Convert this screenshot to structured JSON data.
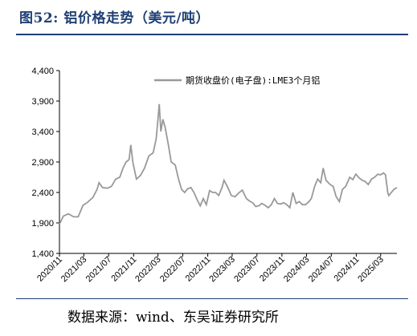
{
  "figure": {
    "title": "图52:  铝价格走势（美元/吨）",
    "source": "数据来源：wind、东吴证券研究所"
  },
  "chart_data": {
    "type": "line",
    "title": "",
    "xlabel": "",
    "ylabel": "",
    "ylim": [
      1400,
      4400
    ],
    "y_ticks": [
      1400,
      1900,
      2400,
      2900,
      3400,
      3900,
      4400
    ],
    "y_tick_labels": [
      "1,400",
      "1,900",
      "2,400",
      "2,900",
      "3,400",
      "3,900",
      "4,400"
    ],
    "x_tick_labels": [
      "2020/11",
      "2021/03",
      "2021/07",
      "2021/11",
      "2022/03",
      "2022/07",
      "2022/11",
      "2023/03",
      "2023/07",
      "2023/11",
      "2024/03",
      "2024/07",
      "2024/11",
      "2025/03"
    ],
    "legend_position": "top-right",
    "grid": false,
    "colors": {
      "line": "#999999",
      "axis": "#000000"
    },
    "series": [
      {
        "name": "期货收盘价(电子盘):LME3个月铝",
        "points": [
          [
            "2020-11-01",
            1880
          ],
          [
            "2020-11-20",
            2010
          ],
          [
            "2020-12-15",
            2050
          ],
          [
            "2021-01-10",
            2000
          ],
          [
            "2021-02-01",
            2000
          ],
          [
            "2021-02-25",
            2190
          ],
          [
            "2021-03-20",
            2240
          ],
          [
            "2021-04-15",
            2320
          ],
          [
            "2021-05-05",
            2450
          ],
          [
            "2021-05-15",
            2560
          ],
          [
            "2021-06-01",
            2480
          ],
          [
            "2021-06-25",
            2470
          ],
          [
            "2021-07-15",
            2500
          ],
          [
            "2021-08-05",
            2620
          ],
          [
            "2021-08-25",
            2650
          ],
          [
            "2021-09-10",
            2800
          ],
          [
            "2021-09-25",
            2900
          ],
          [
            "2021-10-10",
            2940
          ],
          [
            "2021-10-18",
            3180
          ],
          [
            "2021-10-28",
            2900
          ],
          [
            "2021-11-15",
            2620
          ],
          [
            "2021-12-05",
            2680
          ],
          [
            "2021-12-25",
            2800
          ],
          [
            "2022-01-15",
            3000
          ],
          [
            "2022-02-05",
            3050
          ],
          [
            "2022-02-20",
            3280
          ],
          [
            "2022-03-01",
            3600
          ],
          [
            "2022-03-07",
            3850
          ],
          [
            "2022-03-15",
            3400
          ],
          [
            "2022-03-25",
            3600
          ],
          [
            "2022-04-05",
            3470
          ],
          [
            "2022-04-20",
            3200
          ],
          [
            "2022-05-05",
            2900
          ],
          [
            "2022-05-25",
            2850
          ],
          [
            "2022-06-10",
            2620
          ],
          [
            "2022-06-25",
            2450
          ],
          [
            "2022-07-10",
            2400
          ],
          [
            "2022-07-25",
            2460
          ],
          [
            "2022-08-10",
            2480
          ],
          [
            "2022-08-25",
            2400
          ],
          [
            "2022-09-10",
            2280
          ],
          [
            "2022-09-25",
            2180
          ],
          [
            "2022-10-10",
            2300
          ],
          [
            "2022-10-25",
            2200
          ],
          [
            "2022-11-10",
            2430
          ],
          [
            "2022-11-25",
            2400
          ],
          [
            "2022-12-10",
            2400
          ],
          [
            "2022-12-25",
            2350
          ],
          [
            "2023-01-10",
            2480
          ],
          [
            "2023-01-20",
            2600
          ],
          [
            "2023-02-05",
            2500
          ],
          [
            "2023-02-25",
            2350
          ],
          [
            "2023-03-15",
            2330
          ],
          [
            "2023-04-05",
            2400
          ],
          [
            "2023-04-20",
            2440
          ],
          [
            "2023-05-10",
            2300
          ],
          [
            "2023-05-25",
            2260
          ],
          [
            "2023-06-10",
            2230
          ],
          [
            "2023-06-25",
            2170
          ],
          [
            "2023-07-10",
            2180
          ],
          [
            "2023-07-25",
            2220
          ],
          [
            "2023-08-10",
            2190
          ],
          [
            "2023-08-25",
            2150
          ],
          [
            "2023-09-10",
            2200
          ],
          [
            "2023-09-25",
            2300
          ],
          [
            "2023-10-10",
            2220
          ],
          [
            "2023-10-25",
            2210
          ],
          [
            "2023-11-10",
            2230
          ],
          [
            "2023-11-25",
            2200
          ],
          [
            "2023-12-10",
            2150
          ],
          [
            "2023-12-25",
            2400
          ],
          [
            "2024-01-10",
            2220
          ],
          [
            "2024-01-25",
            2250
          ],
          [
            "2024-02-10",
            2200
          ],
          [
            "2024-02-25",
            2200
          ],
          [
            "2024-03-10",
            2240
          ],
          [
            "2024-03-25",
            2300
          ],
          [
            "2024-04-10",
            2500
          ],
          [
            "2024-04-25",
            2620
          ],
          [
            "2024-05-10",
            2560
          ],
          [
            "2024-05-22",
            2800
          ],
          [
            "2024-06-05",
            2600
          ],
          [
            "2024-06-25",
            2530
          ],
          [
            "2024-07-10",
            2500
          ],
          [
            "2024-07-25",
            2330
          ],
          [
            "2024-08-10",
            2250
          ],
          [
            "2024-08-25",
            2450
          ],
          [
            "2024-09-10",
            2500
          ],
          [
            "2024-09-30",
            2650
          ],
          [
            "2024-10-15",
            2610
          ],
          [
            "2024-10-30",
            2700
          ],
          [
            "2024-11-15",
            2640
          ],
          [
            "2024-11-30",
            2600
          ],
          [
            "2024-12-15",
            2580
          ],
          [
            "2024-12-30",
            2530
          ],
          [
            "2025-01-15",
            2620
          ],
          [
            "2025-01-30",
            2650
          ],
          [
            "2025-02-15",
            2700
          ],
          [
            "2025-02-28",
            2690
          ],
          [
            "2025-03-15",
            2720
          ],
          [
            "2025-03-25",
            2690
          ],
          [
            "2025-04-05",
            2400
          ],
          [
            "2025-04-10",
            2350
          ],
          [
            "2025-04-20",
            2390
          ],
          [
            "2025-05-05",
            2450
          ],
          [
            "2025-05-20",
            2480
          ]
        ]
      }
    ]
  }
}
